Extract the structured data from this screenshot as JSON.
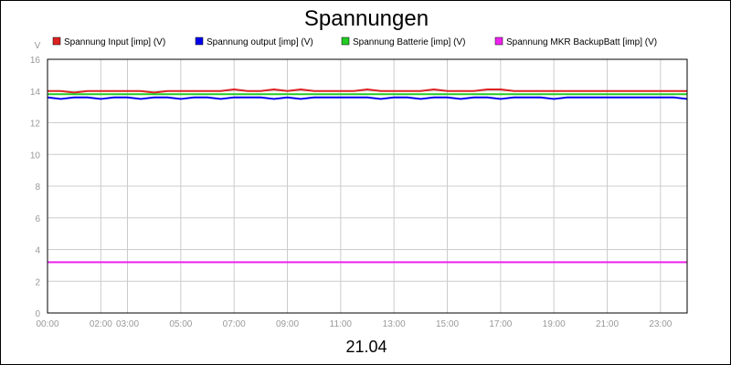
{
  "chart_data": {
    "type": "line",
    "title": "Spannungen",
    "ylabel": "V",
    "xlabel": "21.04",
    "ylim": [
      0,
      16
    ],
    "yticks": [
      0,
      2,
      4,
      6,
      8,
      10,
      12,
      14,
      16
    ],
    "xlim_hours": [
      0,
      24
    ],
    "xticks": [
      {
        "label": "00:00",
        "hour": 0
      },
      {
        "label": "02:00",
        "hour": 2
      },
      {
        "label": "03:00",
        "hour": 3
      },
      {
        "label": "05:00",
        "hour": 5
      },
      {
        "label": "07:00",
        "hour": 7
      },
      {
        "label": "09:00",
        "hour": 9
      },
      {
        "label": "11:00",
        "hour": 11
      },
      {
        "label": "13:00",
        "hour": 13
      },
      {
        "label": "15:00",
        "hour": 15
      },
      {
        "label": "17:00",
        "hour": 17
      },
      {
        "label": "19:00",
        "hour": 19
      },
      {
        "label": "21:00",
        "hour": 21
      },
      {
        "label": "23:00",
        "hour": 23
      }
    ],
    "grid": true,
    "legend_position": "top",
    "x": [
      0,
      0.5,
      1,
      1.5,
      2,
      2.5,
      3,
      3.5,
      4,
      4.5,
      5,
      5.5,
      6,
      6.5,
      7,
      7.5,
      8,
      8.5,
      9,
      9.5,
      10,
      10.5,
      11,
      11.5,
      12,
      12.5,
      13,
      13.5,
      14,
      14.5,
      15,
      15.5,
      16,
      16.5,
      17,
      17.5,
      18,
      18.5,
      19,
      19.5,
      20,
      20.5,
      21,
      21.5,
      22,
      22.5,
      23,
      23.5,
      24
    ],
    "series": [
      {
        "name": "Spannung Input [imp] (V)",
        "color": "#dd2222",
        "values": [
          14,
          14,
          13.9,
          14,
          14,
          14,
          14,
          14,
          13.9,
          14,
          14,
          14,
          14,
          14,
          14.1,
          14,
          14,
          14.1,
          14,
          14.1,
          14,
          14,
          14,
          14,
          14.1,
          14,
          14,
          14,
          14,
          14.1,
          14,
          14,
          14,
          14.1,
          14.1,
          14,
          14,
          14,
          14,
          14,
          14,
          14,
          14,
          14,
          14,
          14,
          14,
          14,
          14
        ]
      },
      {
        "name": "Spannung output [imp] (V)",
        "color": "#0000ee",
        "values": [
          13.6,
          13.5,
          13.6,
          13.6,
          13.5,
          13.6,
          13.6,
          13.5,
          13.6,
          13.6,
          13.5,
          13.6,
          13.6,
          13.5,
          13.6,
          13.6,
          13.6,
          13.5,
          13.6,
          13.5,
          13.6,
          13.6,
          13.6,
          13.6,
          13.6,
          13.5,
          13.6,
          13.6,
          13.5,
          13.6,
          13.6,
          13.5,
          13.6,
          13.6,
          13.5,
          13.6,
          13.6,
          13.6,
          13.5,
          13.6,
          13.6,
          13.6,
          13.6,
          13.6,
          13.6,
          13.6,
          13.6,
          13.6,
          13.5
        ]
      },
      {
        "name": "Spannung Batterie [imp] (V)",
        "color": "#22cc22",
        "values": [
          13.8,
          13.8,
          13.8,
          13.8,
          13.8,
          13.8,
          13.8,
          13.8,
          13.8,
          13.8,
          13.8,
          13.8,
          13.8,
          13.8,
          13.8,
          13.8,
          13.8,
          13.8,
          13.8,
          13.8,
          13.8,
          13.8,
          13.8,
          13.8,
          13.8,
          13.8,
          13.8,
          13.8,
          13.8,
          13.8,
          13.8,
          13.8,
          13.8,
          13.8,
          13.8,
          13.8,
          13.8,
          13.8,
          13.8,
          13.8,
          13.8,
          13.8,
          13.8,
          13.8,
          13.8,
          13.8,
          13.8,
          13.8,
          13.8
        ]
      },
      {
        "name": "Spannung MKR BackupBatt [imp] (V)",
        "color": "#ee22ee",
        "values": [
          3.2,
          3.2,
          3.2,
          3.2,
          3.2,
          3.2,
          3.2,
          3.2,
          3.2,
          3.2,
          3.2,
          3.2,
          3.2,
          3.2,
          3.2,
          3.2,
          3.2,
          3.2,
          3.2,
          3.2,
          3.2,
          3.2,
          3.2,
          3.2,
          3.2,
          3.2,
          3.2,
          3.2,
          3.2,
          3.2,
          3.2,
          3.2,
          3.2,
          3.2,
          3.2,
          3.2,
          3.2,
          3.2,
          3.2,
          3.2,
          3.2,
          3.2,
          3.2,
          3.2,
          3.2,
          3.2,
          3.2,
          3.2,
          3.2
        ]
      }
    ]
  }
}
